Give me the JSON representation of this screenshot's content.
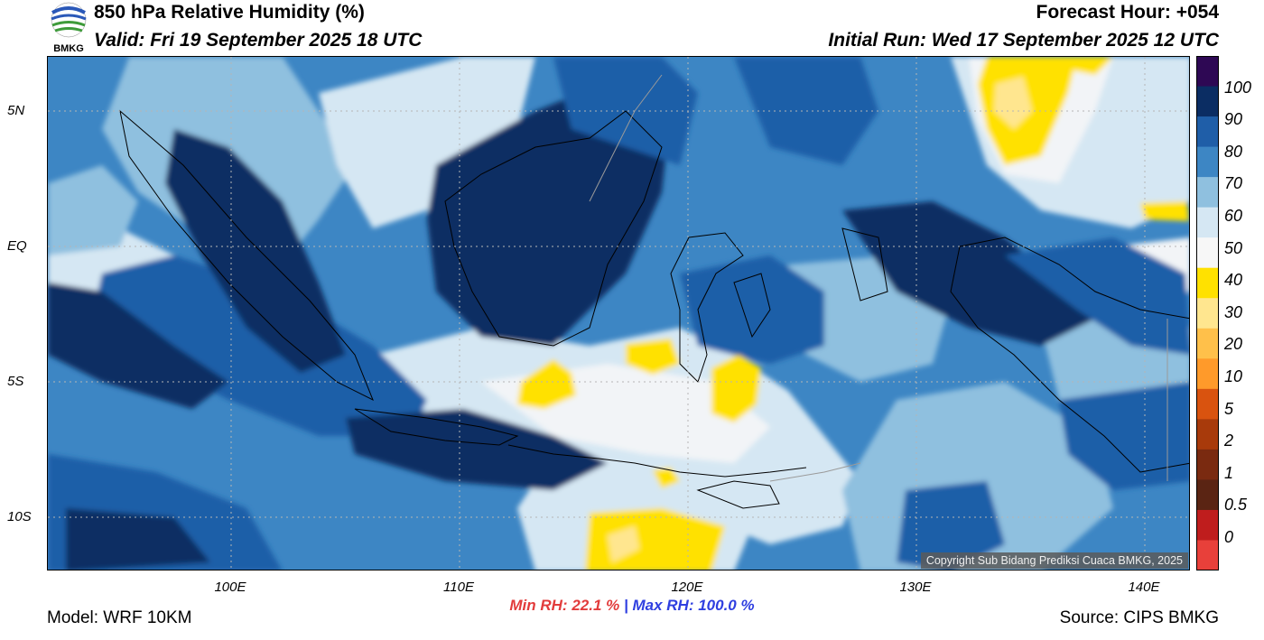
{
  "header": {
    "title": "850 hPa Relative Humidity (%)",
    "valid": "Valid: Fri 19 September 2025 18 UTC",
    "forecast_hour": "Forecast Hour: +054",
    "initial_run": "Initial Run: Wed 17 September 2025 12 UTC"
  },
  "logo": {
    "text": "BMKG"
  },
  "map": {
    "lat_labels": [
      "5N",
      "EQ",
      "5S",
      "10S"
    ],
    "lon_labels": [
      "100E",
      "110E",
      "120E",
      "130E",
      "140E"
    ],
    "copyright": "Copyright Sub Bidang Prediksi Cuaca BMKG, 2025"
  },
  "colorbar": {
    "labels": [
      "100",
      "90",
      "80",
      "70",
      "60",
      "50",
      "40",
      "30",
      "20",
      "10",
      "5",
      "2",
      "1",
      "0.5",
      "0"
    ],
    "colors": [
      "#2e0854",
      "#0b2d63",
      "#1f5ea8",
      "#3d86c4",
      "#8fc0df",
      "#d5e7f3",
      "#f7f7f7",
      "#ffe100",
      "#ffe68f",
      "#ffc04a",
      "#ff9a2a",
      "#d9530f",
      "#a83a0b",
      "#7a2a10",
      "#5a2413",
      "#bf1d1d",
      "#e8403a"
    ]
  },
  "stats": {
    "min": "Min RH:  22.1 %",
    "separator": "|",
    "max": "Max RH: 100.0 %"
  },
  "footer": {
    "model": "Model: WRF 10KM",
    "source": "Source: CIPS BMKG"
  }
}
